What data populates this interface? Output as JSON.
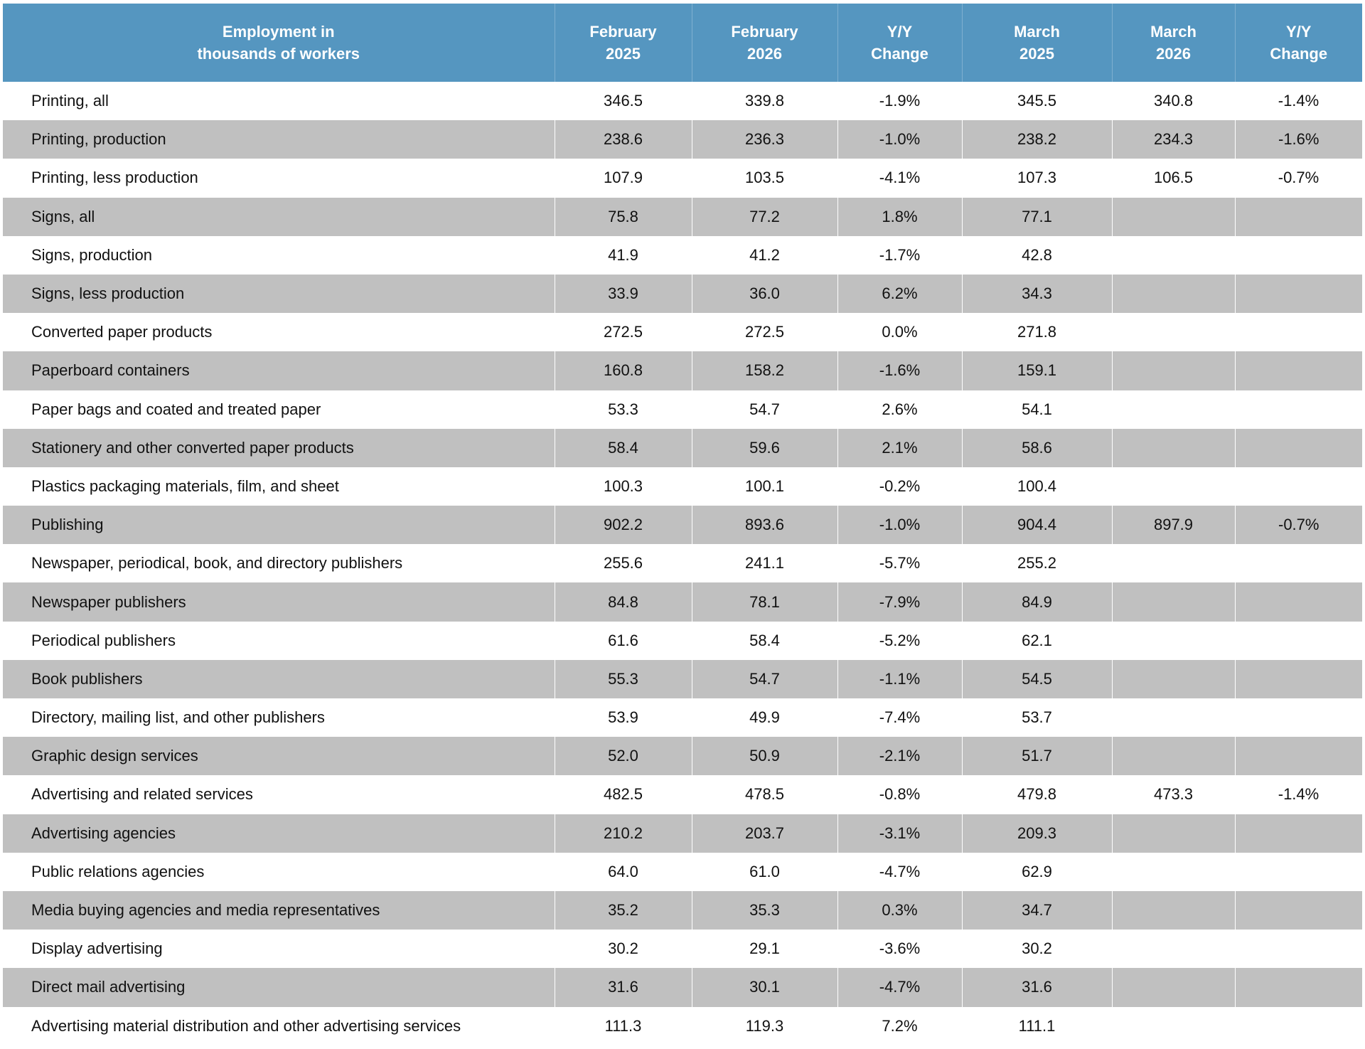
{
  "table": {
    "header": [
      [
        "Employment in",
        "thousands of workers"
      ],
      [
        "February",
        "2025"
      ],
      [
        "February",
        "2026"
      ],
      [
        "Y/Y",
        "Change"
      ],
      [
        "March",
        "2025"
      ],
      [
        "March",
        "2026"
      ],
      [
        "Y/Y",
        "Change"
      ]
    ],
    "rows": [
      [
        "Printing, all",
        "346.5",
        "339.8",
        "-1.9%",
        "345.5",
        "340.8",
        "-1.4%"
      ],
      [
        "Printing, production",
        "238.6",
        "236.3",
        "-1.0%",
        "238.2",
        "234.3",
        "-1.6%"
      ],
      [
        "Printing, less production",
        "107.9",
        "103.5",
        "-4.1%",
        "107.3",
        "106.5",
        "-0.7%"
      ],
      [
        "Signs, all",
        "75.8",
        "77.2",
        "1.8%",
        "77.1"
      ],
      [
        "Signs, production",
        "41.9",
        "41.2",
        "-1.7%",
        "42.8"
      ],
      [
        "Signs, less production",
        "33.9",
        "36.0",
        "6.2%",
        "34.3"
      ],
      [
        "Converted paper products",
        "272.5",
        "272.5",
        "0.0%",
        "271.8"
      ],
      [
        "Paperboard containers",
        "160.8",
        "158.2",
        "-1.6%",
        "159.1"
      ],
      [
        "Paper bags and coated and treated paper",
        "53.3",
        "54.7",
        "2.6%",
        "54.1"
      ],
      [
        "Stationery and other converted paper products",
        "58.4",
        "59.6",
        "2.1%",
        "58.6"
      ],
      [
        "Plastics packaging materials, film, and sheet",
        "100.3",
        "100.1",
        "-0.2%",
        "100.4"
      ],
      [
        "Publishing",
        "902.2",
        "893.6",
        "-1.0%",
        "904.4",
        "897.9",
        "-0.7%"
      ],
      [
        "Newspaper, periodical, book, and directory publishers",
        "255.6",
        "241.1",
        "-5.7%",
        "255.2"
      ],
      [
        "Newspaper publishers",
        "84.8",
        "78.1",
        "-7.9%",
        "84.9"
      ],
      [
        "Periodical publishers",
        "61.6",
        "58.4",
        "-5.2%",
        "62.1"
      ],
      [
        "Book publishers",
        "55.3",
        "54.7",
        "-1.1%",
        "54.5"
      ],
      [
        "Directory, mailing list, and other publishers",
        "53.9",
        "49.9",
        "-7.4%",
        "53.7"
      ],
      [
        "Graphic design services",
        "52.0",
        "50.9",
        "-2.1%",
        "51.7"
      ],
      [
        "Advertising and related services",
        "482.5",
        "478.5",
        "-0.8%",
        "479.8",
        "473.3",
        "-1.4%"
      ],
      [
        "Advertising agencies",
        "210.2",
        "203.7",
        "-3.1%",
        "209.3"
      ],
      [
        "Public relations agencies",
        "64.0",
        "61.0",
        "-4.7%",
        "62.9"
      ],
      [
        "Media buying agencies and media representatives",
        "35.2",
        "35.3",
        "0.3%",
        "34.7"
      ],
      [
        "Display advertising",
        "30.2",
        "29.1",
        "-3.6%",
        "30.2"
      ],
      [
        "Direct mail advertising",
        "31.6",
        "30.1",
        "-4.7%",
        "31.6"
      ],
      [
        "Advertising material distribution and other advertising services",
        "111.3",
        "119.3",
        "7.2%",
        "111.1"
      ]
    ]
  }
}
